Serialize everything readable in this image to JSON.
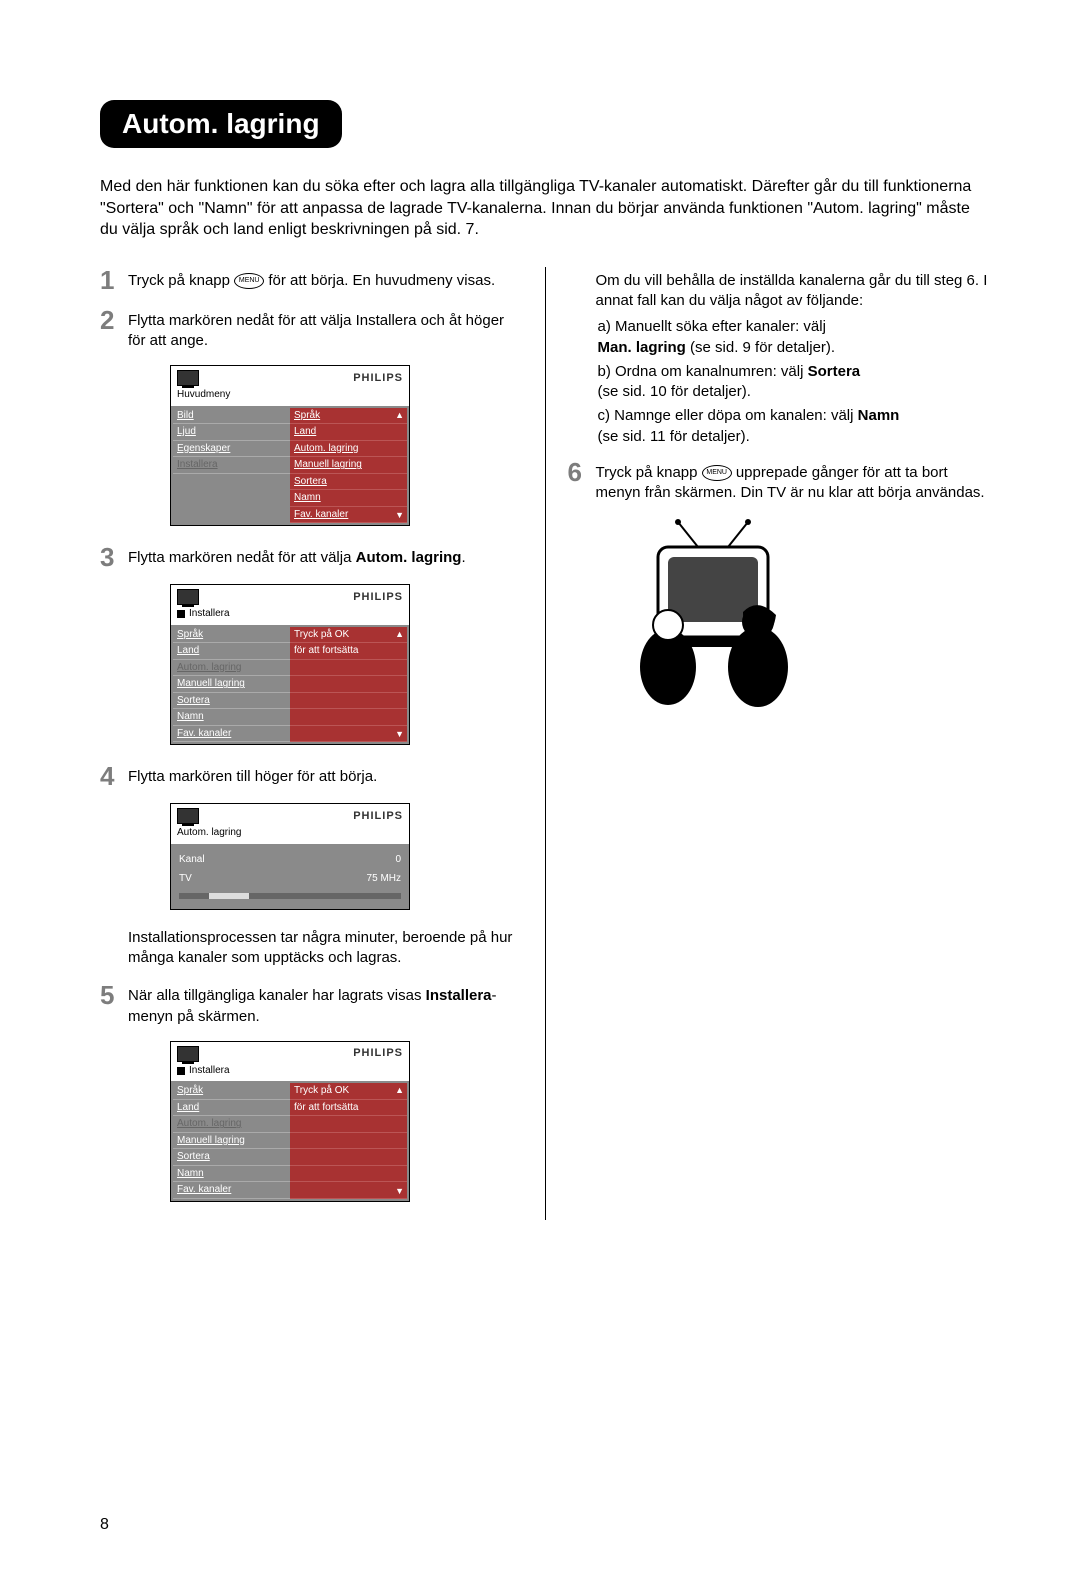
{
  "title": "Autom. lagring",
  "intro": "Med den här funktionen kan du söka efter och lagra alla tillgängliga TV-kanaler automatiskt. Därefter går du till funktionerna \"Sortera\" och \"Namn\" för att anpassa de lagrade TV-kanalerna. Innan du börjar använda funktionen \"Autom. lagring\" måste du välja språk och land enligt beskrivningen på sid. 7.",
  "menu_label": "MENU",
  "brand": "PHILIPS",
  "steps": {
    "s1a": "Tryck på knapp ",
    "s1b": " för att börja. En huvudmeny visas.",
    "s2": "Flytta markören nedåt för att välja Installera och åt höger för att ange.",
    "s3a": "Flytta markören nedåt för att välja ",
    "s3b": "Autom. lagring",
    "s3c": ".",
    "s4": "Flytta markören till höger för att börja.",
    "s4b": "Installationsprocessen tar några minuter, beroende på hur många kanaler som upptäcks och lagras.",
    "s5a": "När alla tillgängliga kanaler har lagrats visas ",
    "s5b": "Installera",
    "s5c": "-menyn på skärmen.",
    "r_intro": "Om du vill behålla de inställda kanalerna går du till steg 6. I annat fall kan du välja något av följande:",
    "ra1": "a) Manuellt söka efter kanaler: välj",
    "ra2a": "Man. lagring",
    "ra2b": " (se sid. 9 för detaljer).",
    "rb1a": "b) Ordna om kanalnumren: välj ",
    "rb1b": "Sortera",
    "rb2": "(se sid. 10 för detaljer).",
    "rc1a": "c) Namnge eller döpa om kanalen: välj ",
    "rc1b": "Namn",
    "rc2": "(se sid. 11 för detaljer).",
    "s6a": "Tryck på knapp ",
    "s6b": " upprepade gånger för att ta bort menyn från skärmen. Din TV är nu klar att börja användas."
  },
  "menu1": {
    "crumb": "Huvudmeny",
    "left": [
      "Bild",
      "Ljud",
      "Egenskaper",
      "Installera"
    ],
    "left_sel_idx": 3,
    "right": [
      "Språk",
      "Land",
      "Autom. lagring",
      "Manuell lagring",
      "Sortera",
      "Namn",
      "Fav. kanaler"
    ]
  },
  "menu2": {
    "crumb": "Installera",
    "left": [
      "Språk",
      "Land",
      "Autom. lagring",
      "Manuell lagring",
      "Sortera",
      "Namn",
      "Fav. kanaler"
    ],
    "left_sel_idx": 2,
    "right1": "Tryck på OK",
    "right2": "för att fortsätta"
  },
  "menu3": {
    "crumb": "Autom. lagring",
    "kanal_l": "Kanal",
    "kanal_v": "0",
    "tv_l": "TV",
    "tv_v": "75 MHz"
  },
  "menu4": {
    "crumb": "Installera",
    "left": [
      "Språk",
      "Land",
      "Autom. lagring",
      "Manuell lagring",
      "Sortera",
      "Namn",
      "Fav. kanaler"
    ],
    "left_sel_idx": 2,
    "right1": "Tryck på OK",
    "right2": "för att fortsätta"
  },
  "page_number": "8",
  "colors": {
    "pill_bg": "#000000",
    "pill_fg": "#ffffff",
    "step_num": "#7d7d7d",
    "menu_bg": "#8a8a8a",
    "menu_hl": "#a83232"
  }
}
